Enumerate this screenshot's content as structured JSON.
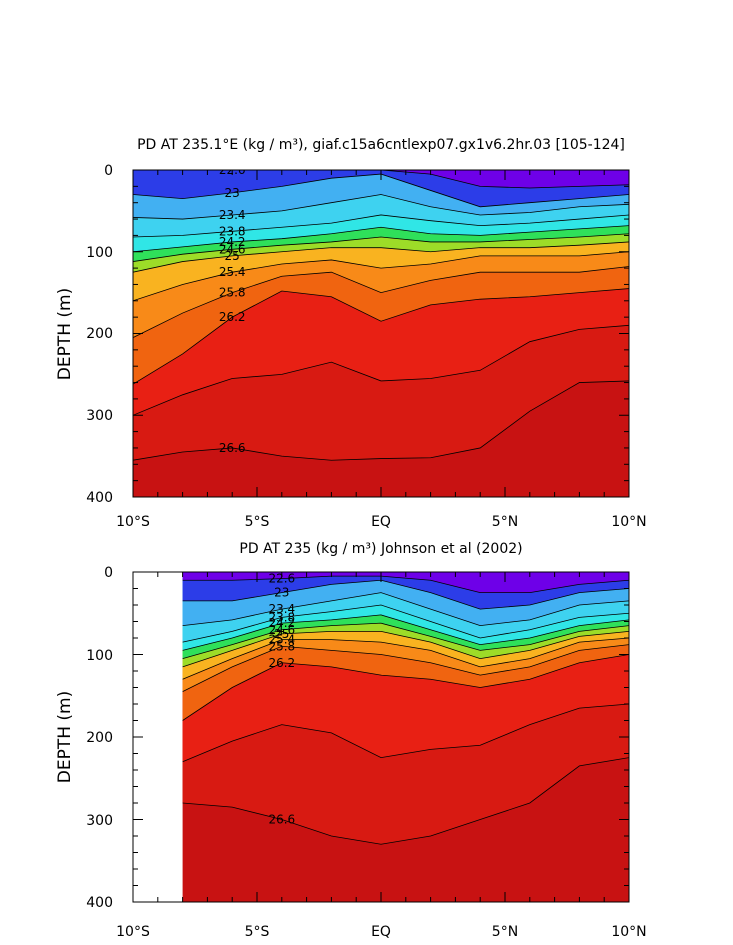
{
  "chart_data": [
    {
      "type": "contour",
      "title": "PD AT 235.1°E (kg / m³), giaf.c15a6cntlexp07.gx1v6.2hr.03 [105-124]",
      "ylabel": "DEPTH (m)",
      "xlabel": "",
      "xlim": [
        -10,
        10
      ],
      "ylim": [
        0,
        400
      ],
      "y_inverted": true,
      "x_ticks": [
        "10°S",
        "5°S",
        "EQ",
        "5°N",
        "10°N"
      ],
      "y_ticks": [
        "0",
        "100",
        "200",
        "300",
        "400"
      ],
      "contour_interval": 0.2,
      "isopycnals": [
        {
          "level": 26.6,
          "label": "26.6",
          "x": [
            -10,
            -8,
            -6,
            -4,
            -2,
            0,
            2,
            4,
            6,
            8,
            10
          ],
          "y": [
            355,
            345,
            340,
            350,
            355,
            353,
            352,
            340,
            295,
            260,
            258
          ]
        },
        {
          "level": 26.4,
          "label": "",
          "x": [
            -10,
            -8,
            -6,
            -4,
            -2,
            0,
            2,
            4,
            6,
            8,
            10
          ],
          "y": [
            300,
            275,
            255,
            250,
            235,
            258,
            255,
            245,
            210,
            195,
            190
          ]
        },
        {
          "level": 26.2,
          "label": "26.2",
          "x": [
            -10,
            -8,
            -6,
            -4,
            -2,
            0,
            2,
            4,
            6,
            8,
            10
          ],
          "y": [
            262,
            225,
            180,
            148,
            155,
            185,
            165,
            158,
            155,
            150,
            145
          ]
        },
        {
          "level": 25.8,
          "label": "25.8",
          "x": [
            -10,
            -8,
            -6,
            -4,
            -2,
            0,
            2,
            4,
            6,
            8,
            10
          ],
          "y": [
            205,
            175,
            150,
            130,
            125,
            150,
            135,
            125,
            125,
            125,
            118
          ]
        },
        {
          "level": 25.4,
          "label": "25.4",
          "x": [
            -10,
            -8,
            -6,
            -4,
            -2,
            0,
            2,
            4,
            6,
            8,
            10
          ],
          "y": [
            160,
            140,
            125,
            115,
            110,
            120,
            115,
            105,
            105,
            105,
            100
          ]
        },
        {
          "level": 25.0,
          "label": "25",
          "x": [
            -10,
            -8,
            -6,
            -4,
            -2,
            0,
            2,
            4,
            6,
            8,
            10
          ],
          "y": [
            125,
            112,
            105,
            100,
            95,
            95,
            100,
            95,
            95,
            92,
            88
          ]
        },
        {
          "level": 24.6,
          "label": "24.6",
          "x": [
            -10,
            -8,
            -6,
            -4,
            -2,
            0,
            2,
            4,
            6,
            8,
            10
          ],
          "y": [
            112,
            103,
            97,
            92,
            88,
            82,
            88,
            88,
            85,
            82,
            78
          ]
        },
        {
          "level": 24.2,
          "label": "24.2",
          "x": [
            -10,
            -8,
            -6,
            -4,
            -2,
            0,
            2,
            4,
            6,
            8,
            10
          ],
          "y": [
            100,
            94,
            88,
            84,
            78,
            70,
            78,
            80,
            76,
            72,
            68
          ]
        },
        {
          "level": 23.8,
          "label": "23.8",
          "x": [
            -10,
            -8,
            -6,
            -4,
            -2,
            0,
            2,
            4,
            6,
            8,
            10
          ],
          "y": [
            82,
            80,
            75,
            70,
            65,
            55,
            62,
            68,
            65,
            60,
            55
          ]
        },
        {
          "level": 23.4,
          "label": "23.4",
          "x": [
            -10,
            -8,
            -6,
            -4,
            -2,
            0,
            2,
            4,
            6,
            8,
            10
          ],
          "y": [
            58,
            60,
            55,
            50,
            40,
            30,
            45,
            55,
            52,
            45,
            42
          ]
        },
        {
          "level": 23.0,
          "label": "23",
          "x": [
            -10,
            -8,
            -6,
            -4,
            -2,
            0,
            2,
            4,
            6,
            8,
            10
          ],
          "y": [
            30,
            35,
            28,
            20,
            10,
            5,
            25,
            45,
            40,
            35,
            30
          ]
        },
        {
          "level": 22.6,
          "label": "22.6",
          "x": [
            -10,
            -8,
            -6,
            -4,
            -2,
            0,
            2,
            4,
            6,
            8,
            10
          ],
          "y": [
            0,
            0,
            0,
            0,
            0,
            0,
            5,
            20,
            22,
            20,
            18
          ]
        }
      ],
      "contour_labels": [
        "23.4",
        "23.8",
        "24.2",
        "24.6",
        "25",
        "25.4",
        "25.8",
        "26.2",
        "26.6",
        "22.6",
        "23"
      ]
    },
    {
      "type": "contour",
      "title": "PD AT 235 (kg / m³) Johnson et al (2002)",
      "ylabel": "DEPTH (m)",
      "xlabel": "",
      "xlim": [
        -10,
        10
      ],
      "ylim": [
        0,
        400
      ],
      "y_inverted": true,
      "data_xrange": [
        -8,
        10
      ],
      "x_ticks": [
        "10°S",
        "5°S",
        "EQ",
        "5°N",
        "10°N"
      ],
      "y_ticks": [
        "0",
        "100",
        "200",
        "300",
        "400"
      ],
      "contour_interval": 0.2,
      "isopycnals": [
        {
          "level": 26.6,
          "label": "26.6",
          "x": [
            -8,
            -6,
            -4,
            -2,
            0,
            2,
            4,
            6,
            8,
            10
          ],
          "y": [
            280,
            285,
            300,
            320,
            330,
            320,
            300,
            280,
            235,
            225
          ]
        },
        {
          "level": 26.4,
          "label": "",
          "x": [
            -8,
            -6,
            -4,
            -2,
            0,
            2,
            4,
            6,
            8,
            10
          ],
          "y": [
            230,
            205,
            185,
            195,
            225,
            215,
            210,
            185,
            165,
            160
          ]
        },
        {
          "level": 26.2,
          "label": "26.2",
          "x": [
            -8,
            -6,
            -4,
            -2,
            0,
            2,
            4,
            6,
            8,
            10
          ],
          "y": [
            180,
            140,
            110,
            115,
            125,
            130,
            140,
            130,
            110,
            100
          ]
        },
        {
          "level": 25.8,
          "label": "25.8",
          "x": [
            -8,
            -6,
            -4,
            -2,
            0,
            2,
            4,
            6,
            8,
            10
          ],
          "y": [
            145,
            115,
            90,
            95,
            100,
            110,
            125,
            115,
            95,
            88
          ]
        },
        {
          "level": 25.4,
          "label": "25.4",
          "x": [
            -8,
            -6,
            -4,
            -2,
            0,
            2,
            4,
            6,
            8,
            10
          ],
          "y": [
            130,
            105,
            82,
            82,
            85,
            95,
            115,
            105,
            85,
            80
          ]
        },
        {
          "level": 25.0,
          "label": "25",
          "x": [
            -8,
            -6,
            -4,
            -2,
            0,
            2,
            4,
            6,
            8,
            10
          ],
          "y": [
            115,
            95,
            75,
            72,
            72,
            85,
            105,
            95,
            78,
            72
          ]
        },
        {
          "level": 24.6,
          "label": "24.6",
          "x": [
            -8,
            -6,
            -4,
            -2,
            0,
            2,
            4,
            6,
            8,
            10
          ],
          "y": [
            105,
            88,
            70,
            65,
            62,
            78,
            95,
            88,
            72,
            65
          ]
        },
        {
          "level": 24.2,
          "label": "24.2",
          "x": [
            -8,
            -6,
            -4,
            -2,
            0,
            2,
            4,
            6,
            8,
            10
          ],
          "y": [
            95,
            80,
            62,
            58,
            52,
            70,
            88,
            80,
            65,
            58
          ]
        },
        {
          "level": 23.8,
          "label": "23.8",
          "x": [
            -8,
            -6,
            -4,
            -2,
            0,
            2,
            4,
            6,
            8,
            10
          ],
          "y": [
            85,
            72,
            55,
            48,
            40,
            60,
            80,
            70,
            55,
            50
          ]
        },
        {
          "level": 23.4,
          "label": "23.4",
          "x": [
            -8,
            -6,
            -4,
            -2,
            0,
            2,
            4,
            6,
            8,
            10
          ],
          "y": [
            65,
            58,
            45,
            35,
            25,
            45,
            65,
            58,
            40,
            35
          ]
        },
        {
          "level": 23.0,
          "label": "23",
          "x": [
            -8,
            -6,
            -4,
            -2,
            0,
            2,
            4,
            6,
            8,
            10
          ],
          "y": [
            35,
            35,
            25,
            15,
            10,
            25,
            45,
            40,
            25,
            20
          ]
        },
        {
          "level": 22.6,
          "label": "22.6",
          "x": [
            -8,
            -6,
            -4,
            -2,
            0,
            2,
            4,
            6,
            8,
            10
          ],
          "y": [
            10,
            10,
            8,
            5,
            5,
            10,
            25,
            25,
            15,
            10
          ]
        }
      ],
      "contour_labels": [
        "23.4",
        "23.8",
        "24.2",
        "24.6",
        "25",
        "25.4",
        "25.8",
        "26.2",
        "26.6",
        "22.6",
        "23"
      ]
    }
  ],
  "colors": {
    "fill_bins": [
      "#6e00e8",
      "#2c3de8",
      "#2f7ff0",
      "#42b0f2",
      "#3ed2f0",
      "#30e6e6",
      "#25e7b2",
      "#2fe05a",
      "#9ddc28",
      "#f0e42a",
      "#f9b320",
      "#f88a18",
      "#f06410",
      "#e43a14",
      "#e82014",
      "#d81a12",
      "#c81212"
    ],
    "contour_line": "#000000"
  }
}
